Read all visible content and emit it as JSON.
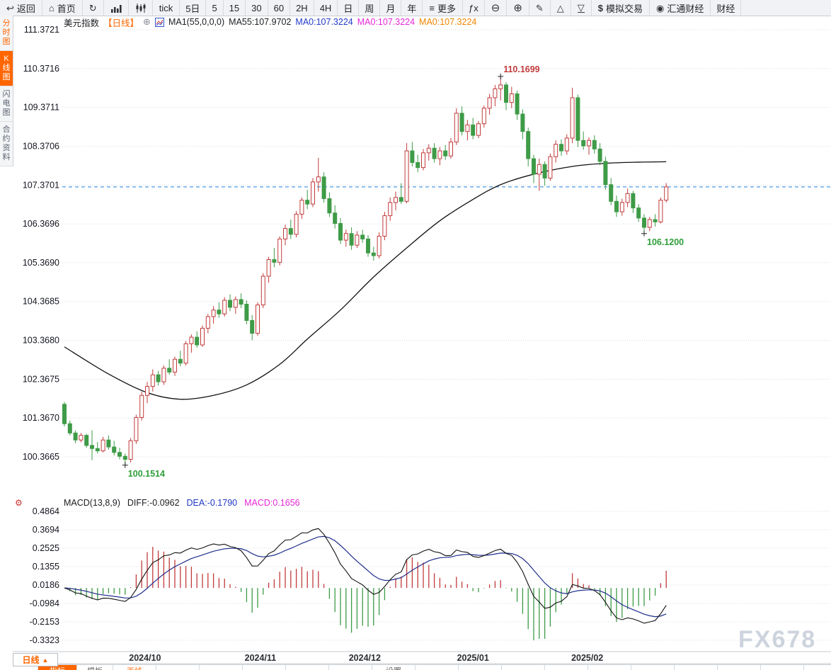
{
  "toolbar": {
    "items": [
      {
        "id": "back",
        "icon": "back-arrow-icon",
        "label": "返回"
      },
      {
        "id": "home",
        "icon": "home-icon",
        "label": "首页"
      },
      {
        "id": "refresh",
        "icon": "refresh-icon",
        "label": ""
      },
      {
        "id": "area-chart",
        "icon": "area-chart-icon",
        "label": ""
      },
      {
        "id": "candlestick",
        "icon": "candlestick-icon",
        "label": ""
      },
      {
        "id": "tick",
        "icon": "",
        "label": "tick"
      },
      {
        "id": "5d",
        "icon": "",
        "label": "5日"
      },
      {
        "id": "m5",
        "icon": "",
        "label": "5"
      },
      {
        "id": "m15",
        "icon": "",
        "label": "15"
      },
      {
        "id": "m30",
        "icon": "",
        "label": "30"
      },
      {
        "id": "m60",
        "icon": "",
        "label": "60"
      },
      {
        "id": "h2",
        "icon": "",
        "label": "2H"
      },
      {
        "id": "h4",
        "icon": "",
        "label": "4H"
      },
      {
        "id": "day",
        "icon": "",
        "label": "日"
      },
      {
        "id": "week",
        "icon": "",
        "label": "周"
      },
      {
        "id": "month",
        "icon": "",
        "label": "月"
      },
      {
        "id": "year",
        "icon": "",
        "label": "年"
      },
      {
        "id": "more",
        "icon": "menu-icon",
        "label": "更多"
      },
      {
        "id": "fx-func",
        "icon": "",
        "label": "ƒx"
      },
      {
        "id": "zoom-out",
        "icon": "zoom-out-icon",
        "label": ""
      },
      {
        "id": "zoom-in",
        "icon": "zoom-in-icon",
        "label": ""
      },
      {
        "id": "draw",
        "icon": "pencil-icon",
        "label": ""
      },
      {
        "id": "triangle-up",
        "icon": "triangle-up-icon",
        "label": ""
      },
      {
        "id": "triangle-down",
        "icon": "triangle-down-icon",
        "label": ""
      },
      {
        "id": "sim-trade",
        "icon": "dollar-icon",
        "label": "模拟交易"
      },
      {
        "id": "fx678-news",
        "icon": "globe-icon",
        "label": "汇通财经"
      },
      {
        "id": "finance",
        "icon": "",
        "label": "财经"
      }
    ]
  },
  "sidebar": {
    "items": [
      {
        "id": "time-share",
        "label": "分时图",
        "state": "hl-text"
      },
      {
        "id": "kline",
        "label": "K线图",
        "state": "active"
      },
      {
        "id": "lightning",
        "label": "闪电图",
        "state": ""
      },
      {
        "id": "contract-info",
        "label": "合约资料",
        "state": ""
      }
    ]
  },
  "chart_header": {
    "symbol": "美元指数",
    "period_tag": "【日线】",
    "add_icon": "⊕",
    "ma_settings": "MA1(55,0,0,0)",
    "ma55": "MA55:107.9702",
    "ma_values": [
      {
        "label": "MA0:107.3224",
        "color": "#2038c8"
      },
      {
        "label": "MA0:107.3224",
        "color": "#e626d9"
      },
      {
        "label": "MA0:107.3224",
        "color": "#f08600"
      }
    ]
  },
  "macd_header": {
    "title": "MACD(13,8,9)",
    "diff": "DIFF:-0.0962",
    "dea": "DEA:-0.1790",
    "macd": "MACD:0.1656"
  },
  "bottom": {
    "period_button": "日线",
    "period_arrow": "▲",
    "tabs": [
      {
        "label": "",
        "style": ""
      },
      {
        "label": "指标",
        "style": "active"
      },
      {
        "label": "模板",
        "style": ""
      },
      {
        "label": "画线",
        "style": "orange-text"
      },
      {
        "label": "",
        "style": ""
      },
      {
        "label": "",
        "style": ""
      },
      {
        "label": "",
        "style": ""
      },
      {
        "label": "",
        "style": ""
      },
      {
        "label": "",
        "style": ""
      },
      {
        "label": "设置",
        "style": ""
      },
      {
        "label": "",
        "style": ""
      },
      {
        "label": "",
        "style": ""
      },
      {
        "label": "",
        "style": ""
      },
      {
        "label": "",
        "style": ""
      },
      {
        "label": "",
        "style": ""
      },
      {
        "label": "",
        "style": ""
      },
      {
        "label": "",
        "style": ""
      },
      {
        "label": "",
        "style": ""
      },
      {
        "label": "",
        "style": ""
      }
    ]
  },
  "watermark": "FX678",
  "colors": {
    "accent_orange": "#ff6600",
    "bull_red": "#c23b3b",
    "bear_green": "#3e9b47",
    "current_price_line": "#1f82e0",
    "dea_blue": "#1f2e8c",
    "diff_black": "#111111",
    "grid": "#d9dce3",
    "annotation_green": "#2e9e3a",
    "annotation_red": "#c23b3b"
  },
  "chart_data": {
    "type": "candlestick+macd",
    "title": "美元指数 日线 (US Dollar Index, daily)",
    "price_axis": [
      111.3721,
      110.3716,
      109.3711,
      108.3706,
      107.3701,
      106.3696,
      105.369,
      104.3685,
      103.368,
      102.3675,
      101.367,
      100.3665
    ],
    "macd_axis": [
      0.4864,
      0.3694,
      0.2525,
      0.1355,
      0.0186,
      -0.0984,
      -0.2153,
      -0.3323
    ],
    "months": [
      {
        "label": "2024/10",
        "index": 14.6
      },
      {
        "label": "2024/11",
        "index": 35.5
      },
      {
        "label": "2024/12",
        "index": 54.4
      },
      {
        "label": "2025/01",
        "index": 74.0
      },
      {
        "label": "2025/02",
        "index": 94.7
      }
    ],
    "current_price": 107.3224,
    "ma55_points": [
      [
        0,
        103.2
      ],
      [
        8,
        102.5
      ],
      [
        15,
        102.02
      ],
      [
        21,
        101.85
      ],
      [
        27,
        101.95
      ],
      [
        33,
        102.22
      ],
      [
        39,
        102.75
      ],
      [
        44,
        103.4
      ],
      [
        50,
        104.15
      ],
      [
        56,
        105.0
      ],
      [
        62,
        105.75
      ],
      [
        68,
        106.45
      ],
      [
        74,
        107.0
      ],
      [
        79,
        107.38
      ],
      [
        85,
        107.65
      ],
      [
        92,
        107.85
      ],
      [
        98,
        107.93
      ],
      [
        104,
        107.96
      ],
      [
        109,
        107.97
      ]
    ],
    "macd_params": {
      "fast": 8,
      "slow": 13,
      "signal": 9,
      "bar_multiplier": 2
    },
    "annotations": [
      {
        "text": "110.1699",
        "index": 79,
        "price": 110.1699,
        "placement": "above",
        "color": "#c23b3b"
      },
      {
        "text": "106.1200",
        "index": 105,
        "price": 106.12,
        "placement": "below",
        "color": "#2e9e3a"
      },
      {
        "text": "100.1514",
        "index": 11,
        "price": 100.1514,
        "placement": "below",
        "color": "#2e9e3a"
      }
    ],
    "candles": [
      [
        101.72,
        101.78,
        101.15,
        101.22
      ],
      [
        101.22,
        101.3,
        100.92,
        100.98
      ],
      [
        100.98,
        101.05,
        100.72,
        100.8
      ],
      [
        100.8,
        100.98,
        100.74,
        100.92
      ],
      [
        100.92,
        100.96,
        100.6,
        100.66
      ],
      [
        100.66,
        101.05,
        100.28,
        100.58
      ],
      [
        100.58,
        100.75,
        100.45,
        100.52
      ],
      [
        100.52,
        100.88,
        100.48,
        100.8
      ],
      [
        100.8,
        100.92,
        100.55,
        100.62
      ],
      [
        100.62,
        100.78,
        100.4,
        100.48
      ],
      [
        100.48,
        100.6,
        100.3,
        100.38
      ],
      [
        100.38,
        100.45,
        100.1514,
        100.3
      ],
      [
        100.3,
        100.85,
        100.22,
        100.78
      ],
      [
        100.78,
        101.45,
        100.7,
        101.38
      ],
      [
        101.38,
        102.05,
        101.3,
        101.95
      ],
      [
        101.95,
        102.3,
        101.75,
        102.18
      ],
      [
        102.18,
        102.62,
        102.05,
        102.48
      ],
      [
        102.48,
        102.58,
        102.2,
        102.3
      ],
      [
        102.3,
        102.72,
        102.22,
        102.65
      ],
      [
        102.65,
        102.88,
        102.48,
        102.55
      ],
      [
        102.55,
        102.95,
        102.45,
        102.88
      ],
      [
        102.88,
        103.1,
        102.7,
        102.78
      ],
      [
        102.78,
        103.35,
        102.72,
        103.28
      ],
      [
        103.28,
        103.52,
        103.05,
        103.45
      ],
      [
        103.45,
        103.6,
        103.18,
        103.25
      ],
      [
        103.25,
        103.75,
        103.2,
        103.68
      ],
      [
        103.68,
        104.05,
        103.55,
        103.98
      ],
      [
        103.98,
        104.25,
        103.8,
        104.15
      ],
      [
        104.15,
        104.35,
        103.95,
        104.05
      ],
      [
        104.05,
        104.48,
        103.98,
        104.4
      ],
      [
        104.4,
        104.55,
        104.12,
        104.22
      ],
      [
        104.22,
        104.5,
        104.05,
        104.42
      ],
      [
        104.42,
        104.58,
        104.2,
        104.3
      ],
      [
        104.3,
        104.4,
        103.78,
        103.88
      ],
      [
        103.88,
        104.02,
        103.37,
        103.55
      ],
      [
        103.55,
        104.35,
        103.48,
        104.28
      ],
      [
        104.28,
        105.1,
        104.2,
        105.02
      ],
      [
        105.02,
        105.52,
        104.85,
        105.45
      ],
      [
        105.45,
        105.75,
        105.25,
        105.38
      ],
      [
        105.38,
        106.05,
        105.3,
        105.98
      ],
      [
        105.98,
        106.35,
        105.82,
        106.25
      ],
      [
        106.25,
        106.48,
        105.98,
        106.1
      ],
      [
        106.1,
        106.7,
        106.02,
        106.62
      ],
      [
        106.62,
        107.05,
        106.5,
        106.98
      ],
      [
        106.98,
        107.25,
        106.75,
        106.88
      ],
      [
        106.88,
        107.55,
        106.8,
        107.45
      ],
      [
        107.45,
        108.07,
        107.2,
        107.58
      ],
      [
        107.58,
        107.7,
        106.92,
        107.02
      ],
      [
        107.02,
        107.18,
        106.55,
        106.65
      ],
      [
        106.65,
        106.85,
        106.25,
        106.38
      ],
      [
        106.38,
        106.52,
        105.85,
        105.95
      ],
      [
        105.95,
        106.22,
        105.78,
        106.12
      ],
      [
        106.12,
        106.28,
        105.7,
        105.82
      ],
      [
        105.82,
        106.18,
        105.75,
        106.08
      ],
      [
        106.08,
        106.22,
        105.88,
        105.98
      ],
      [
        105.98,
        106.08,
        105.52,
        105.62
      ],
      [
        105.62,
        105.78,
        105.42,
        105.55
      ],
      [
        105.55,
        106.15,
        105.48,
        106.05
      ],
      [
        106.05,
        106.68,
        105.95,
        106.58
      ],
      [
        106.58,
        107.05,
        106.45,
        106.92
      ],
      [
        106.92,
        107.2,
        106.72,
        107.05
      ],
      [
        107.05,
        107.42,
        106.88,
        106.95
      ],
      [
        106.95,
        108.45,
        106.9,
        108.25
      ],
      [
        108.25,
        108.48,
        107.85,
        107.95
      ],
      [
        107.95,
        108.15,
        107.7,
        107.82
      ],
      [
        107.82,
        108.3,
        107.75,
        108.2
      ],
      [
        108.2,
        108.42,
        108.0,
        108.32
      ],
      [
        108.32,
        108.45,
        107.95,
        108.05
      ],
      [
        108.05,
        108.35,
        107.88,
        108.25
      ],
      [
        108.25,
        108.4,
        108.02,
        108.12
      ],
      [
        108.12,
        108.58,
        108.05,
        108.48
      ],
      [
        108.48,
        109.35,
        108.4,
        109.22
      ],
      [
        109.22,
        109.4,
        108.65,
        108.75
      ],
      [
        108.75,
        109.05,
        108.52,
        108.92
      ],
      [
        108.92,
        109.1,
        108.55,
        108.65
      ],
      [
        108.65,
        109.02,
        108.58,
        108.95
      ],
      [
        108.95,
        109.42,
        108.85,
        109.35
      ],
      [
        109.35,
        109.72,
        109.18,
        109.62
      ],
      [
        109.62,
        109.95,
        109.4,
        109.85
      ],
      [
        109.85,
        110.1699,
        109.55,
        109.95
      ],
      [
        109.95,
        110.02,
        109.3,
        109.5
      ],
      [
        109.5,
        109.9,
        109.35,
        109.72
      ],
      [
        109.72,
        109.8,
        109.05,
        109.2
      ],
      [
        109.2,
        109.32,
        108.55,
        108.75
      ],
      [
        108.75,
        108.85,
        107.85,
        108.05
      ],
      [
        108.05,
        108.15,
        107.42,
        107.65
      ],
      [
        107.65,
        108.05,
        107.22,
        107.9
      ],
      [
        107.9,
        107.98,
        107.35,
        107.55
      ],
      [
        107.55,
        108.18,
        107.48,
        108.1
      ],
      [
        108.1,
        108.52,
        107.95,
        108.42
      ],
      [
        108.42,
        108.55,
        108.12,
        108.25
      ],
      [
        108.25,
        108.68,
        108.15,
        108.58
      ],
      [
        108.58,
        109.88,
        108.45,
        109.62
      ],
      [
        109.62,
        109.7,
        108.35,
        108.52
      ],
      [
        108.52,
        108.75,
        108.28,
        108.38
      ],
      [
        108.38,
        108.6,
        108.15,
        108.52
      ],
      [
        108.52,
        108.65,
        108.18,
        108.3
      ],
      [
        108.3,
        108.45,
        107.88,
        107.98
      ],
      [
        107.98,
        108.1,
        107.25,
        107.38
      ],
      [
        107.38,
        107.55,
        106.85,
        106.95
      ],
      [
        106.95,
        107.1,
        106.55,
        106.68
      ],
      [
        106.68,
        107.02,
        106.58,
        106.92
      ],
      [
        106.92,
        107.28,
        106.8,
        107.15
      ],
      [
        107.15,
        107.22,
        106.65,
        106.78
      ],
      [
        106.78,
        106.88,
        106.42,
        106.52
      ],
      [
        106.52,
        106.62,
        106.12,
        106.28
      ],
      [
        106.28,
        106.55,
        106.18,
        106.48
      ],
      [
        106.48,
        106.62,
        106.3,
        106.42
      ],
      [
        106.42,
        107.05,
        106.38,
        106.98
      ],
      [
        106.98,
        107.42,
        106.92,
        107.3224
      ]
    ]
  }
}
